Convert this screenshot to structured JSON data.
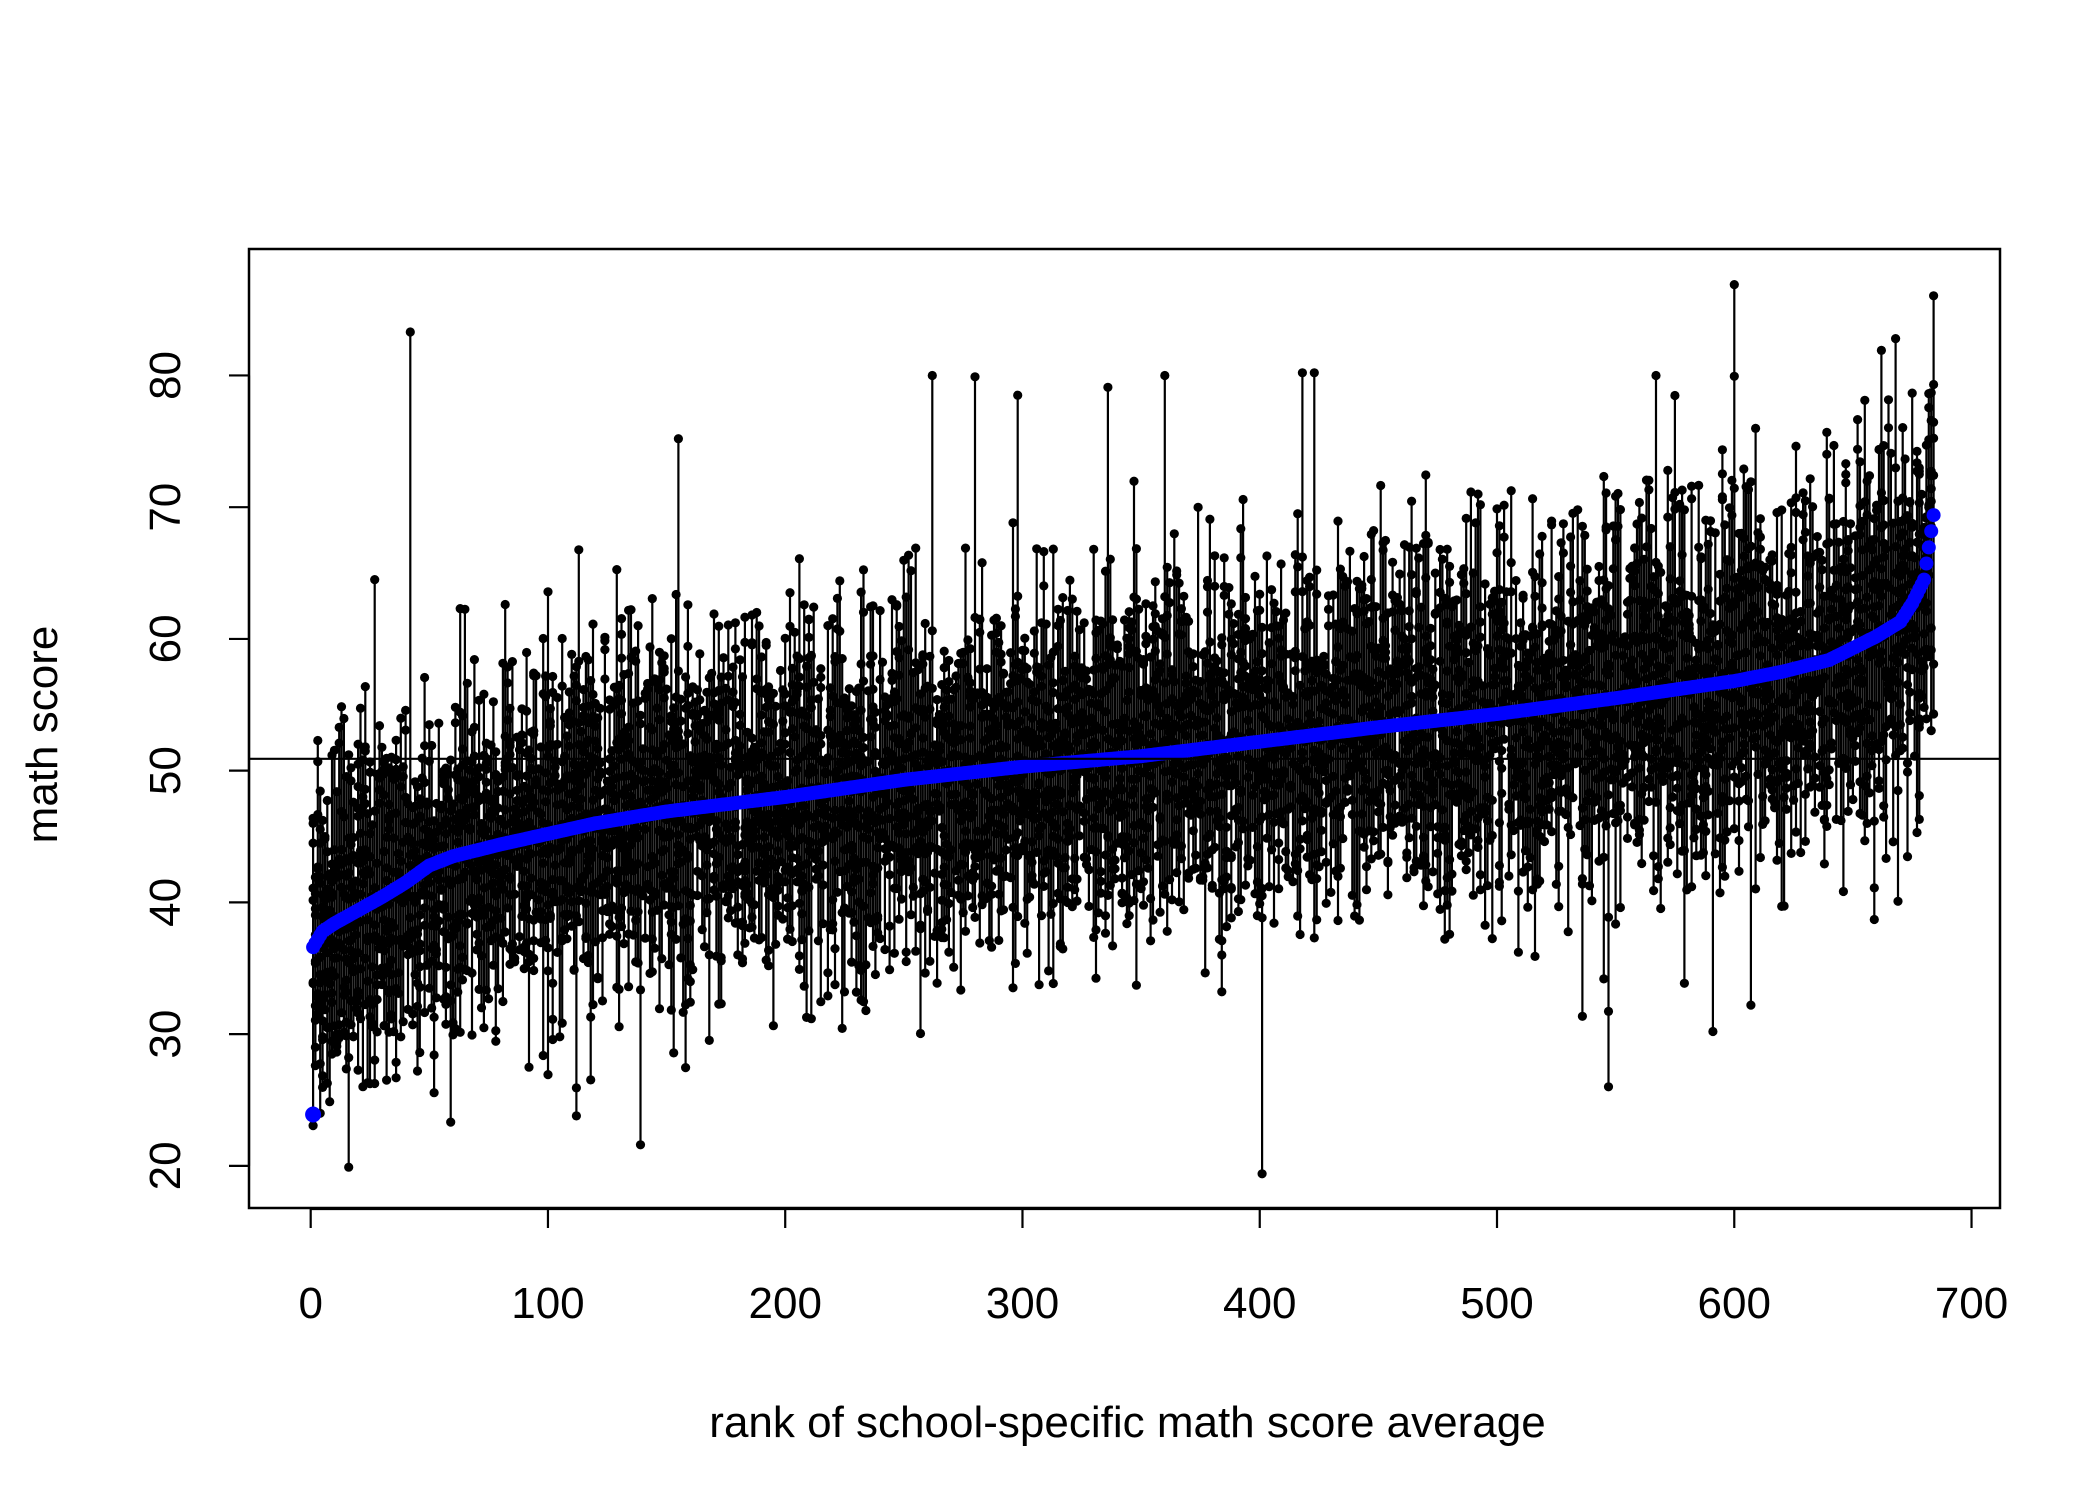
{
  "chart_data": {
    "type": "scatter",
    "title": "",
    "xlabel": "rank of  school-specific math score  average",
    "ylabel": "math score",
    "xlim": [
      -26,
      712
    ],
    "ylim": [
      16.8,
      89.6
    ],
    "x_ticks": [
      0,
      100,
      200,
      300,
      400,
      500,
      600,
      700
    ],
    "y_ticks": [
      20,
      30,
      40,
      50,
      60,
      70,
      80
    ],
    "x_tick_labels": [
      "0",
      "100",
      "200",
      "300",
      "400",
      "500",
      "600",
      "700"
    ],
    "y_tick_labels": [
      "20",
      "30",
      "40",
      "50",
      "60",
      "70",
      "80"
    ],
    "grid": false,
    "legend": "none",
    "reference_line_y": 50.9,
    "n_schools": 684,
    "colors": {
      "students": "#000000",
      "school_means": "#0000ff"
    },
    "series": [
      {
        "role": "school_means",
        "x": [
          1,
          5,
          10,
          20,
          30,
          40,
          50,
          60,
          80,
          100,
          120,
          150,
          200,
          250,
          300,
          350,
          400,
          450,
          500,
          550,
          600,
          620,
          640,
          660,
          670,
          675,
          680,
          684
        ],
        "y": [
          36.6,
          37.8,
          38.4,
          39.4,
          40.4,
          41.5,
          42.8,
          43.5,
          44.4,
          45.2,
          46.0,
          46.9,
          48.0,
          49.3,
          50.3,
          51.1,
          52.2,
          53.3,
          54.3,
          55.5,
          56.8,
          57.5,
          58.4,
          60.2,
          61.3,
          62.7,
          64.5,
          69.4
        ]
      },
      {
        "role": "student_extremes",
        "x": [
          16,
          27,
          42,
          139,
          155,
          262,
          280,
          298,
          336,
          360,
          401,
          418,
          423,
          547,
          567,
          591,
          600,
          607,
          662,
          668,
          678,
          684
        ],
        "y": [
          19.9,
          64.5,
          83.3,
          21.6,
          75.2,
          80.0,
          79.9,
          78.5,
          79.1,
          80.0,
          19.4,
          80.2,
          80.2,
          26.0,
          80.0,
          30.2,
          86.9,
          32.2,
          81.9,
          82.8,
          46.3,
          54.3
        ]
      }
    ]
  }
}
